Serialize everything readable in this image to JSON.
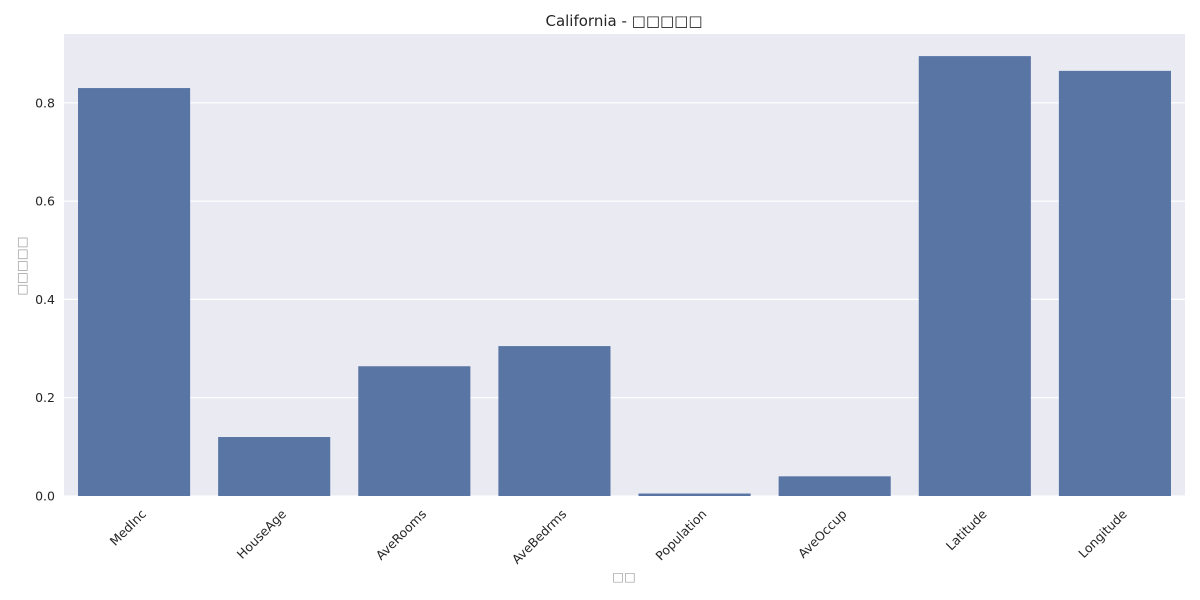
{
  "chart_data": {
    "type": "bar",
    "title": "California - □□□□□",
    "xlabel": "□□",
    "ylabel": "□□□□□",
    "categories": [
      "MedInc",
      "HouseAge",
      "AveRooms",
      "AveBedrms",
      "Population",
      "AveOccup",
      "Latitude",
      "Longitude"
    ],
    "values": [
      0.83,
      0.12,
      0.264,
      0.305,
      0.005,
      0.04,
      0.895,
      0.865
    ],
    "ylim": [
      0,
      0.94
    ],
    "yticks": [
      0.0,
      0.2,
      0.4,
      0.6,
      0.8
    ],
    "ytick_labels": [
      "0.0",
      "0.2",
      "0.4",
      "0.6",
      "0.8"
    ],
    "grid": true,
    "colors": {
      "bar": "#5875a4",
      "plot_background": "#eaeaf2",
      "grid": "#ffffff",
      "text": "#262626",
      "label_muted": "#a0a0a0"
    }
  }
}
